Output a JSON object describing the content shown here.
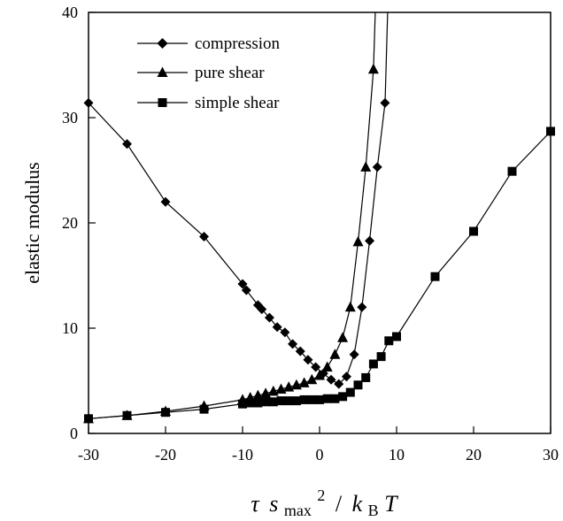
{
  "chart_data": {
    "type": "line",
    "title": "",
    "xlabel": {
      "tau": "τ",
      "s": "s",
      "sub_max": "max",
      "sup_2": "2",
      "slash": "/",
      "k": "k",
      "sub_B": "B",
      "T": "T"
    },
    "ylabel": "elastic modulus",
    "xlim": [
      -30,
      30
    ],
    "ylim": [
      0,
      40
    ],
    "xticks": [
      -30,
      -20,
      -10,
      0,
      10,
      20,
      30
    ],
    "yticks": [
      0,
      10,
      20,
      30,
      40
    ],
    "legend_position": "top-left",
    "series": [
      {
        "name": "compression",
        "marker": "diamond",
        "x": [
          -30,
          -25,
          -20,
          -15,
          -10,
          -9.5,
          -8,
          -7.5,
          -6.5,
          -5.5,
          -4.5,
          -3.5,
          -2.5,
          -1.5,
          -0.5,
          0.5,
          1.5,
          2.5,
          3.5,
          4.5,
          5.5,
          6.5,
          7.5,
          8.5
        ],
        "y": [
          31.4,
          27.5,
          22.0,
          18.7,
          14.2,
          13.6,
          12.2,
          11.8,
          11.0,
          10.1,
          9.6,
          8.5,
          7.8,
          7.0,
          6.3,
          5.7,
          5.1,
          4.7,
          5.4,
          7.5,
          12.0,
          18.3,
          25.3,
          31.4
        ]
      },
      {
        "name": "pure shear",
        "marker": "triangle",
        "x": [
          -30,
          -25,
          -20,
          -15,
          -10,
          -9,
          -8,
          -7,
          -6,
          -5,
          -4,
          -3,
          -2,
          -1,
          0,
          1,
          2,
          3,
          4,
          5,
          6,
          7
        ],
        "y": [
          1.4,
          1.7,
          2.1,
          2.6,
          3.2,
          3.4,
          3.6,
          3.8,
          4.0,
          4.2,
          4.4,
          4.6,
          4.8,
          5.1,
          5.5,
          6.3,
          7.5,
          9.1,
          12.0,
          18.2,
          25.3,
          34.6
        ]
      },
      {
        "name": "simple shear",
        "marker": "square",
        "x": [
          -30,
          -25,
          -20,
          -15,
          -10,
          -9,
          -8,
          -7,
          -6,
          -5,
          -4,
          -3,
          -2,
          -1,
          0,
          1,
          2,
          3,
          4,
          5,
          6,
          7,
          8,
          9,
          10,
          15,
          20,
          25,
          30
        ],
        "y": [
          1.4,
          1.7,
          2.0,
          2.3,
          2.8,
          2.9,
          2.9,
          3.0,
          3.0,
          3.1,
          3.1,
          3.1,
          3.2,
          3.2,
          3.2,
          3.3,
          3.3,
          3.5,
          3.9,
          4.6,
          5.3,
          6.6,
          7.3,
          8.8,
          9.2,
          14.9,
          19.2,
          24.9,
          28.7
        ]
      }
    ]
  }
}
